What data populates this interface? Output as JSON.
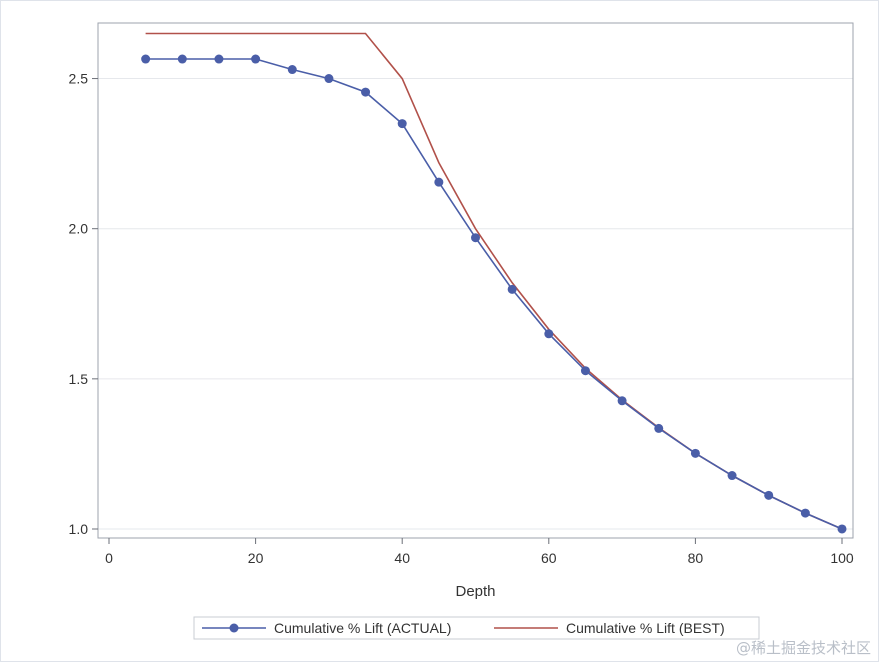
{
  "chart_data": {
    "type": "line",
    "title": "",
    "xlabel": "Depth",
    "ylabel": "",
    "xlim": [
      -1.5,
      101.5
    ],
    "ylim": [
      0.97,
      2.685
    ],
    "x_ticks": [
      "0",
      "20",
      "40",
      "60",
      "80",
      "100"
    ],
    "y_ticks": [
      "1.0",
      "1.5",
      "2.0",
      "2.5"
    ],
    "grid": "horizontal",
    "legend_position": "bottom",
    "series": [
      {
        "name": "Cumulative % Lift (ACTUAL)",
        "color": "#4a5ea8",
        "marker": "circle",
        "x": [
          5,
          10,
          15,
          20,
          25,
          30,
          35,
          40,
          45,
          50,
          55,
          60,
          65,
          70,
          75,
          80,
          85,
          90,
          95,
          100
        ],
        "y": [
          2.565,
          2.565,
          2.565,
          2.565,
          2.53,
          2.5,
          2.455,
          2.35,
          2.155,
          1.97,
          1.798,
          1.65,
          1.527,
          1.427,
          1.335,
          1.252,
          1.178,
          1.112,
          1.053,
          1.0
        ]
      },
      {
        "name": "Cumulative % Lift (BEST)",
        "color": "#b1514a",
        "marker": "none",
        "x": [
          5,
          10,
          15,
          20,
          25,
          30,
          35,
          40,
          45,
          50,
          55,
          60,
          65,
          70,
          75,
          80,
          85,
          90,
          95,
          100
        ],
        "y": [
          2.65,
          2.65,
          2.65,
          2.65,
          2.65,
          2.65,
          2.65,
          2.5,
          2.22,
          2.0,
          1.82,
          1.665,
          1.535,
          1.43,
          1.337,
          1.252,
          1.178,
          1.112,
          1.053,
          1.0
        ]
      }
    ]
  },
  "watermark": "@稀土掘金技术社区"
}
